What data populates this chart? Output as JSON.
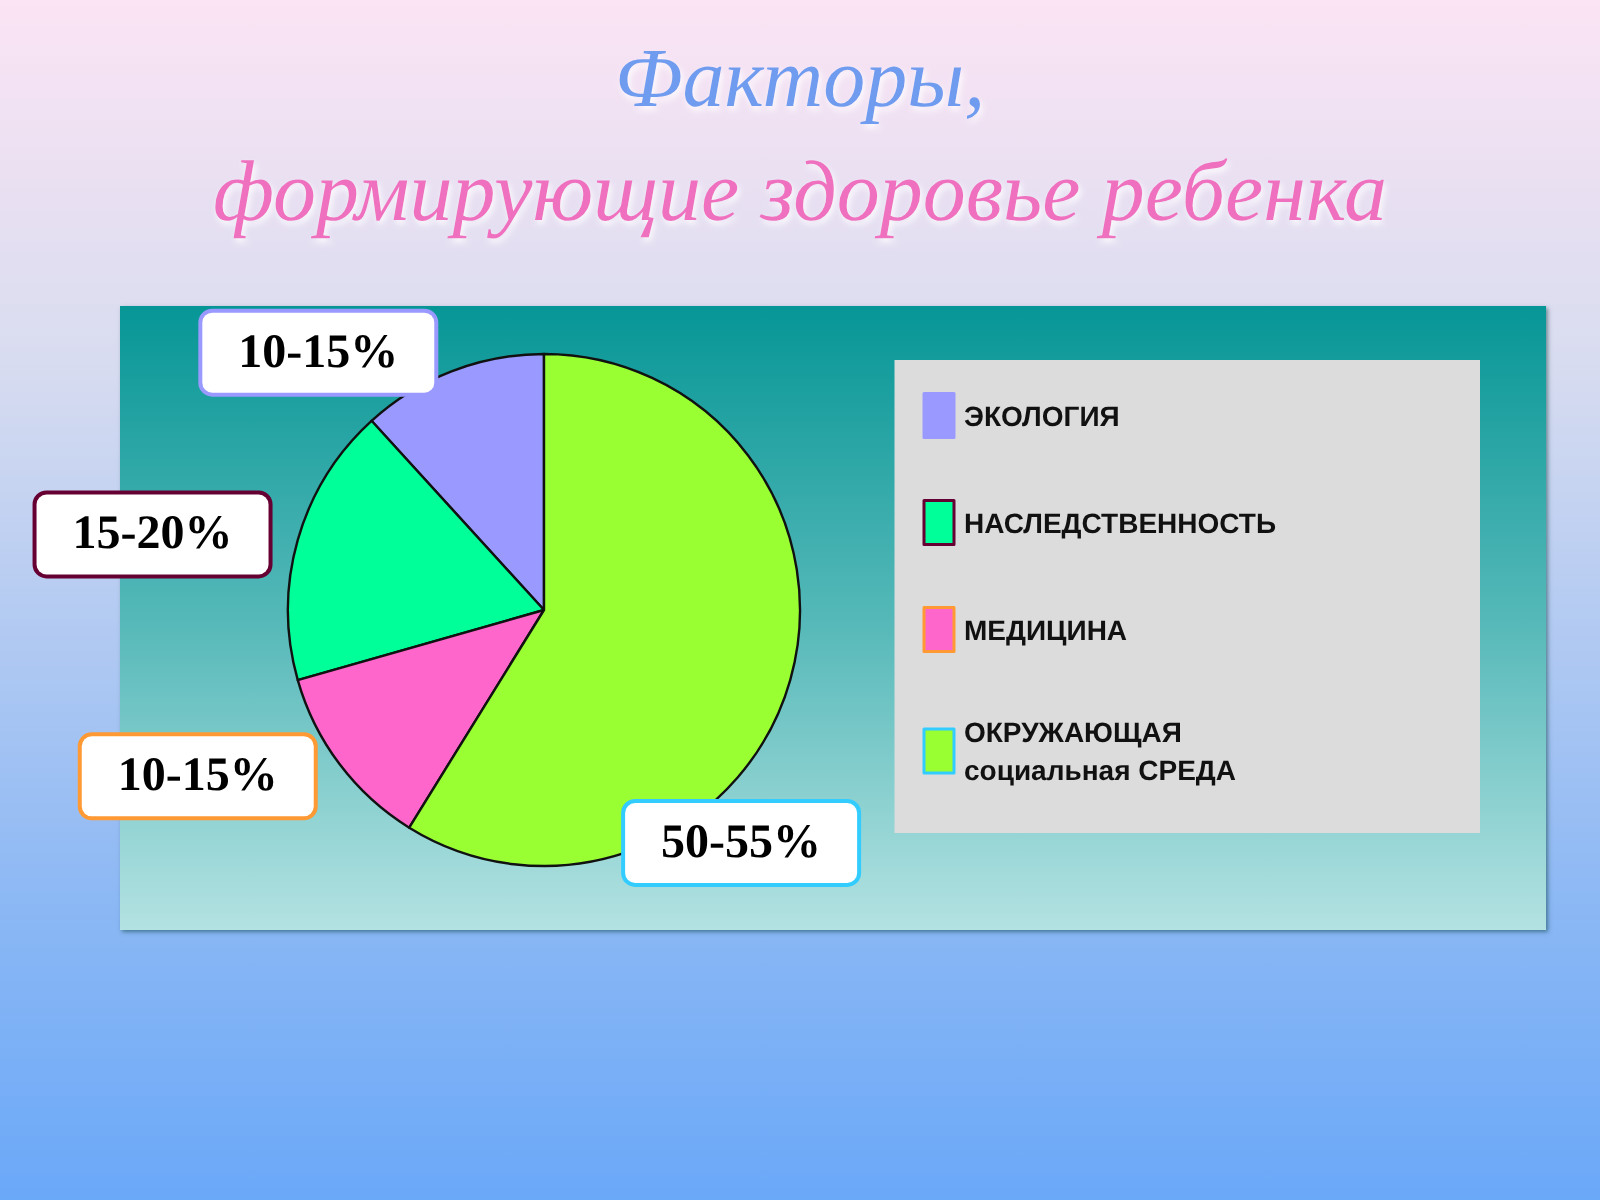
{
  "chart_data": {
    "type": "pie",
    "title": "Факторы,",
    "subtitle": "формирующие здоровье ребенка",
    "categories": [
      "ЭКОЛОГИЯ",
      "НАСЛЕДСТВЕННОСТЬ",
      "МЕДИЦИНА",
      "ОКРУЖАЮЩАЯ социальная СРЕДА"
    ],
    "values": [
      10,
      15,
      10,
      50
    ],
    "colors": [
      "#9999ff",
      "#00ff99",
      "#ff66cc",
      "#99ff33"
    ],
    "value_labels": [
      "10-15%",
      "15-20%",
      "10-15%",
      "50-55%"
    ],
    "legend": "right"
  }
}
